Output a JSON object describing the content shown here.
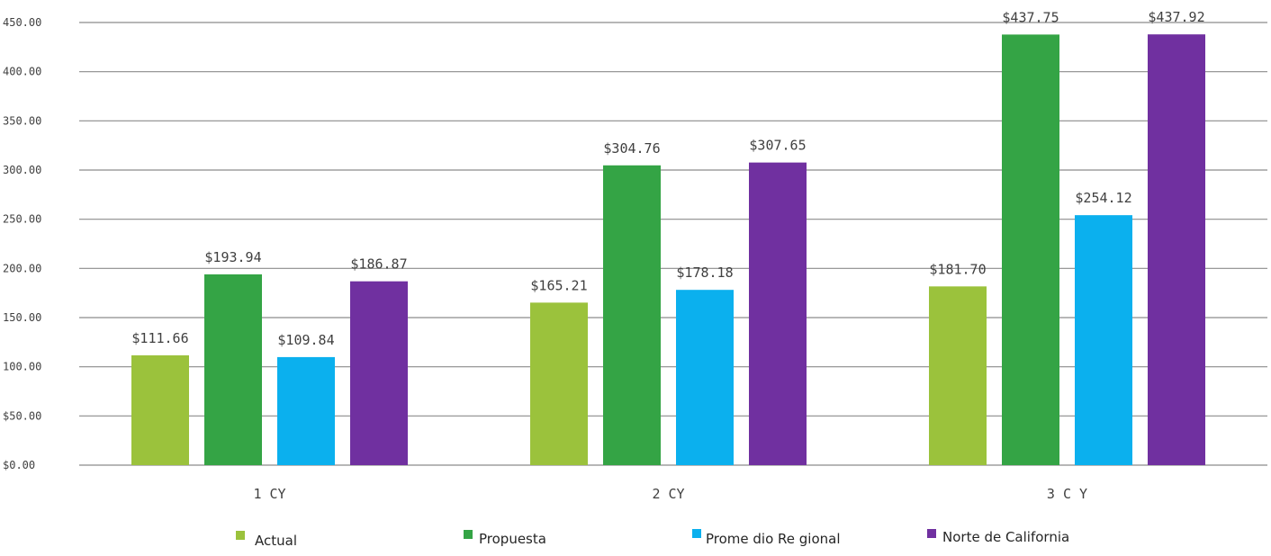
{
  "chart_data": {
    "type": "bar",
    "title": "",
    "xlabel": "",
    "ylabel": "",
    "categories": [
      "1 CY",
      "2 CY",
      "3 C Y"
    ],
    "series": [
      {
        "name": "Actual",
        "color": "#9bc23c",
        "values": [
          111.66,
          165.21,
          181.7
        ],
        "labels": [
          "$111.66",
          "$165.21",
          "$181.70"
        ]
      },
      {
        "name": "Propuesta",
        "color": "#34a445",
        "values": [
          193.94,
          304.76,
          437.75
        ],
        "labels": [
          "$193.94",
          "$304.76",
          "$437.75"
        ]
      },
      {
        "name": "Prome dio Re gional",
        "color": "#0bb0ee",
        "values": [
          109.84,
          178.18,
          254.12
        ],
        "labels": [
          "$109.84",
          "$178.18",
          "$254.12"
        ]
      },
      {
        "name": "Norte de California",
        "color": "#7030a0",
        "values": [
          186.87,
          307.65,
          437.92
        ],
        "labels": [
          "$186.87",
          "$307.65",
          "$437.92"
        ]
      }
    ],
    "ylim": [
      0,
      450
    ],
    "yticks": [
      0,
      50,
      100,
      150,
      200,
      250,
      300,
      350,
      400,
      450
    ],
    "ytick_labels": [
      "$0.00",
      "$50.00",
      "100.00",
      "150.00",
      "200.00",
      "250.00",
      "300.00",
      "350.00",
      "400.00",
      "450.00"
    ],
    "grid": true,
    "legend_position": "bottom"
  }
}
